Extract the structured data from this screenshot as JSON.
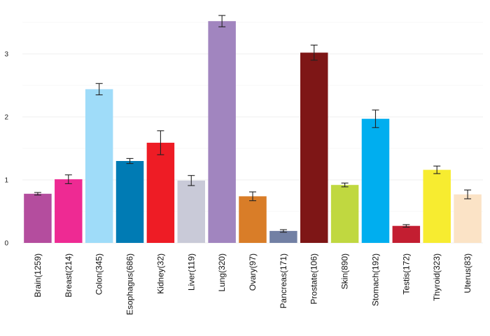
{
  "chart_data": {
    "type": "bar",
    "categories": [
      "Brain(1259)",
      "Breast(214)",
      "Colon(345)",
      "Esophagus(686)",
      "Kidney(32)",
      "Liver(119)",
      "Lung(320)",
      "Ovary(97)",
      "Pancreas(171)",
      "Prostate(106)",
      "Skin(890)",
      "Stomach(192)",
      "Testis(172)",
      "Thyroid(323)",
      "Uterus(83)"
    ],
    "values": [
      0.78,
      1.01,
      2.44,
      1.3,
      1.59,
      0.99,
      3.52,
      0.74,
      0.19,
      3.02,
      0.92,
      1.97,
      0.27,
      1.16,
      0.77
    ],
    "errors": [
      0.02,
      0.07,
      0.09,
      0.04,
      0.19,
      0.08,
      0.09,
      0.07,
      0.02,
      0.12,
      0.03,
      0.14,
      0.02,
      0.06,
      0.07
    ],
    "colors": [
      "#b44d9e",
      "#ee2a93",
      "#9fdcf9",
      "#007bb4",
      "#ee1c25",
      "#c9cad8",
      "#a185bf",
      "#d97d28",
      "#7280a4",
      "#7e1616",
      "#c0d840",
      "#00aeef",
      "#c31e31",
      "#f7ec30",
      "#fbe3c6"
    ],
    "title": "",
    "xlabel": "",
    "ylabel": "",
    "ylim": [
      0,
      3.7
    ],
    "yticks": [
      "0",
      "1",
      "2",
      "3"
    ],
    "grid": true,
    "legend": "none"
  }
}
